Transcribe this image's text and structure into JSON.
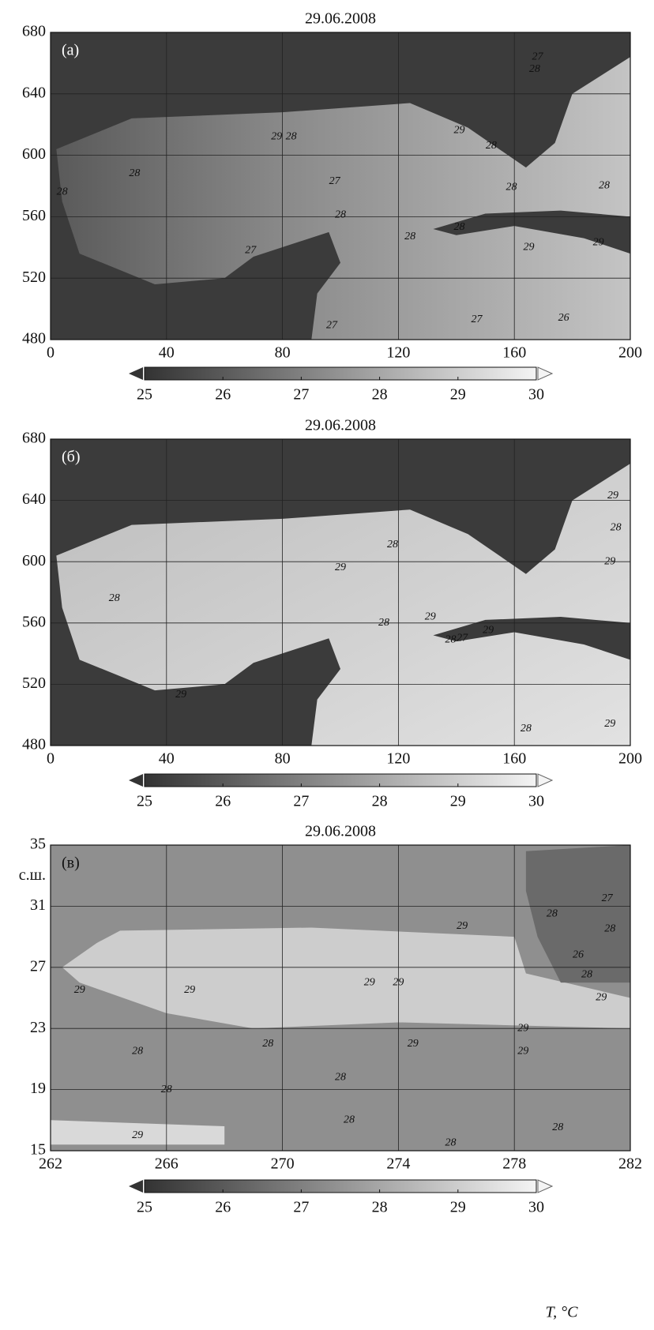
{
  "chart_data": [
    {
      "type": "heatmap",
      "title": "29.06.2008",
      "panel_label": "(a)",
      "xlim": [
        0,
        200
      ],
      "ylim": [
        480,
        680
      ],
      "xticks": [
        0,
        40,
        80,
        120,
        160,
        200
      ],
      "yticks": [
        480,
        520,
        560,
        600,
        640,
        680
      ],
      "colorbar": {
        "lim": [
          25,
          30
        ],
        "ticks": [
          25,
          26,
          27,
          28,
          29,
          30
        ],
        "colors": [
          "#333333",
          "#f4f4f4"
        ]
      },
      "contour_labels": {
        "x": [
          29,
          4,
          78,
          83,
          98,
          100,
          69,
          124,
          141,
          165,
          189,
          177,
          147,
          97,
          141,
          152,
          159,
          191,
          168,
          167
        ],
        "y": [
          588,
          576,
          612,
          612,
          583,
          561,
          538,
          547,
          553,
          540,
          543,
          494,
          493,
          489,
          616,
          606,
          579,
          580,
          664,
          656
        ],
        "values": [
          28,
          28,
          29,
          28,
          27,
          28,
          27,
          28,
          28,
          29,
          29,
          26,
          27,
          27,
          29,
          28,
          28,
          28,
          27,
          28
        ]
      }
    },
    {
      "type": "heatmap",
      "title": "29.06.2008",
      "panel_label": "(б)",
      "xlim": [
        0,
        200
      ],
      "ylim": [
        480,
        680
      ],
      "xticks": [
        0,
        40,
        80,
        120,
        160,
        200
      ],
      "yticks": [
        480,
        520,
        560,
        600,
        640,
        680
      ],
      "colorbar": {
        "lim": [
          25,
          30
        ],
        "ticks": [
          25,
          26,
          27,
          28,
          29,
          30
        ],
        "colors": [
          "#333333",
          "#f4f4f4"
        ]
      },
      "contour_labels": {
        "x": [
          22,
          45,
          100,
          118,
          131,
          115,
          138,
          142,
          151,
          193,
          194,
          195,
          164,
          193
        ],
        "y": [
          576,
          513,
          596,
          611,
          564,
          560,
          549,
          550,
          555,
          600,
          643,
          622,
          491,
          494
        ],
        "values": [
          28,
          29,
          29,
          28,
          29,
          28,
          28,
          27,
          29,
          29,
          29,
          28,
          28,
          29
        ]
      }
    },
    {
      "type": "heatmap",
      "title": "29.06.2008",
      "panel_label": "(в)",
      "ylabel": "с.ш.",
      "xlim": [
        262,
        282
      ],
      "ylim": [
        15,
        35
      ],
      "xticks": [
        262,
        266,
        270,
        274,
        278,
        282
      ],
      "yticks": [
        15,
        19,
        23,
        27,
        31,
        35
      ],
      "colorbar": {
        "lim": [
          25,
          30
        ],
        "ticks": [
          25,
          26,
          27,
          28,
          29,
          30
        ],
        "colors": [
          "#333333",
          "#f4f4f4"
        ],
        "label": "T, °C"
      },
      "contour_labels": {
        "x": [
          263,
          265,
          266,
          265,
          269.5,
          266.8,
          273,
          274,
          276.2,
          278.3,
          278.3,
          274.5,
          272,
          272.3,
          275.8,
          279.3,
          281.2,
          280.2,
          281.3,
          280.5,
          281,
          279.5
        ],
        "y": [
          25.5,
          21.5,
          19,
          16,
          22,
          25.5,
          26,
          26,
          29.7,
          23,
          21.5,
          22,
          19.8,
          17,
          15.5,
          30.5,
          31.5,
          27.8,
          29.5,
          26.5,
          25,
          16.5
        ],
        "values": [
          29,
          28,
          28,
          29,
          28,
          29,
          29,
          29,
          29,
          29,
          29,
          29,
          28,
          28,
          28,
          28,
          27,
          26,
          28,
          28,
          29,
          28
        ]
      }
    }
  ]
}
